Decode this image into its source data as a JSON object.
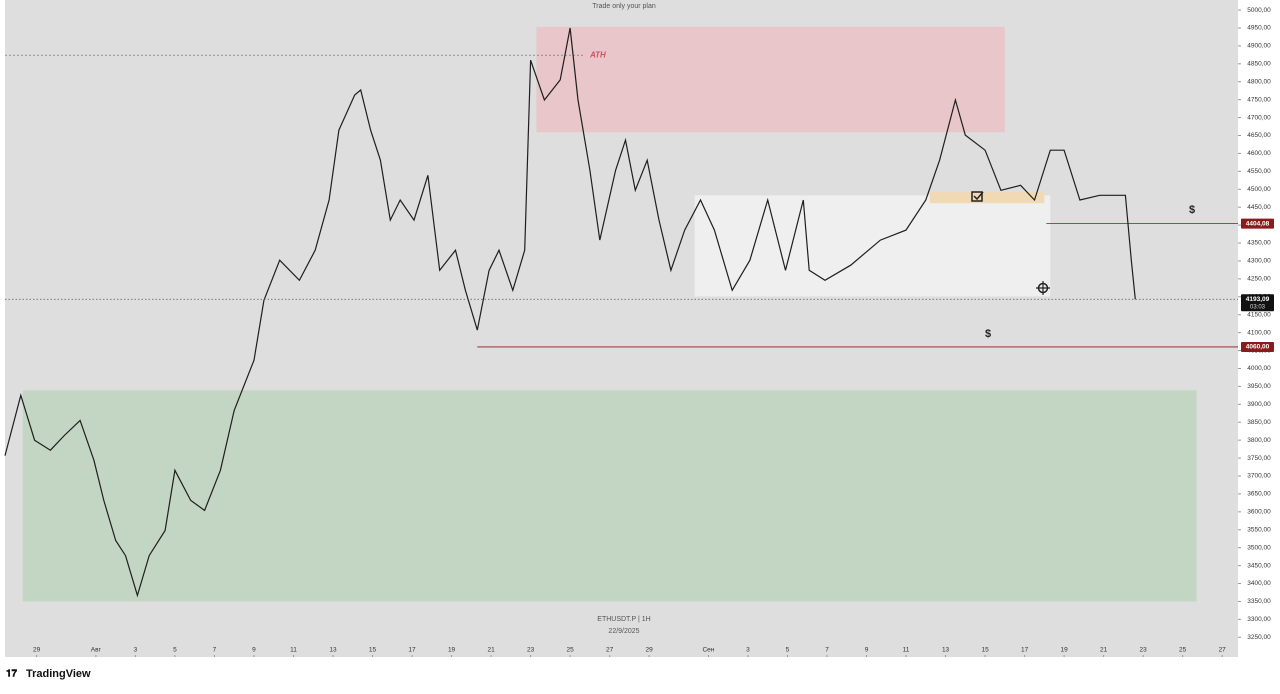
{
  "chart_data": {
    "type": "line",
    "title": "Trade only your plan",
    "symbol": "ETHUSDT.P | 1H",
    "date": "22/9/2025",
    "brand": "TradingView",
    "color": "#1e1e1e",
    "xlim": [
      -1.6,
      60.8
    ],
    "ylim": [
      3195,
      5028
    ],
    "xticks": [
      {
        "value": 0,
        "label": "29"
      },
      {
        "value": 3,
        "label": "Авг"
      },
      {
        "value": 5,
        "label": "3"
      },
      {
        "value": 7,
        "label": "5"
      },
      {
        "value": 9,
        "label": "7"
      },
      {
        "value": 11,
        "label": "9"
      },
      {
        "value": 13,
        "label": "11"
      },
      {
        "value": 15,
        "label": "13"
      },
      {
        "value": 17,
        "label": "15"
      },
      {
        "value": 19,
        "label": "17"
      },
      {
        "value": 21,
        "label": "19"
      },
      {
        "value": 23,
        "label": "21"
      },
      {
        "value": 25,
        "label": "23"
      },
      {
        "value": 27,
        "label": "25"
      },
      {
        "value": 29,
        "label": "27"
      },
      {
        "value": 31,
        "label": "29"
      },
      {
        "value": 34,
        "label": "Сен"
      },
      {
        "value": 36,
        "label": "3"
      },
      {
        "value": 38,
        "label": "5"
      },
      {
        "value": 40,
        "label": "7"
      },
      {
        "value": 42,
        "label": "9"
      },
      {
        "value": 44,
        "label": "11"
      },
      {
        "value": 46,
        "label": "13"
      },
      {
        "value": 48,
        "label": "15"
      },
      {
        "value": 50,
        "label": "17"
      },
      {
        "value": 52,
        "label": "19"
      },
      {
        "value": 54,
        "label": "21"
      },
      {
        "value": 56,
        "label": "23"
      },
      {
        "value": 58,
        "label": "25"
      },
      {
        "value": 60,
        "label": "27"
      }
    ],
    "yticks": [
      {
        "value": 3250,
        "label": "3250,00"
      },
      {
        "value": 3300,
        "label": "3300,00"
      },
      {
        "value": 3350,
        "label": "3350,00"
      },
      {
        "value": 3400,
        "label": "3400,00"
      },
      {
        "value": 3450,
        "label": "3450,00"
      },
      {
        "value": 3500,
        "label": "3500,00"
      },
      {
        "value": 3550,
        "label": "3550,00"
      },
      {
        "value": 3600,
        "label": "3600,00"
      },
      {
        "value": 3650,
        "label": "3650,00"
      },
      {
        "value": 3700,
        "label": "3700,00"
      },
      {
        "value": 3750,
        "label": "3750,00"
      },
      {
        "value": 3800,
        "label": "3800,00"
      },
      {
        "value": 3850,
        "label": "3850,00"
      },
      {
        "value": 3900,
        "label": "3900,00"
      },
      {
        "value": 3950,
        "label": "3950,00"
      },
      {
        "value": 4000,
        "label": "4000,00"
      },
      {
        "value": 4050,
        "label": "4050,00"
      },
      {
        "value": 4100,
        "label": "4100,00"
      },
      {
        "value": 4150,
        "label": "4150,00"
      },
      {
        "value": 4200,
        "label": "4200,00"
      },
      {
        "value": 4250,
        "label": "4250,00"
      },
      {
        "value": 4300,
        "label": "4300,00"
      },
      {
        "value": 4350,
        "label": "4350,00"
      },
      {
        "value": 4400,
        "label": "4400,00"
      },
      {
        "value": 4450,
        "label": "4450,00"
      },
      {
        "value": 4500,
        "label": "4500,00"
      },
      {
        "value": 4550,
        "label": "4550,00"
      },
      {
        "value": 4600,
        "label": "4600,00"
      },
      {
        "value": 4650,
        "label": "4650,00"
      },
      {
        "value": 4700,
        "label": "4700,00"
      },
      {
        "value": 4750,
        "label": "4750,00"
      },
      {
        "value": 4800,
        "label": "4800,00"
      },
      {
        "value": 4850,
        "label": "4850,00"
      },
      {
        "value": 4900,
        "label": "4900,00"
      },
      {
        "value": 4950,
        "label": "4950,00"
      },
      {
        "value": 5000,
        "label": "5000,00"
      }
    ],
    "x": [
      -1.6,
      -0.8,
      -0.1,
      0.7,
      1.4,
      2.2,
      2.9,
      3.4,
      4,
      4.5,
      5.1,
      5.7,
      6.5,
      7,
      7.8,
      8.5,
      9.3,
      10,
      11,
      11.5,
      12.3,
      13.3,
      14.1,
      14.8,
      15.3,
      16.1,
      16.4,
      16.9,
      17.4,
      17.9,
      18.4,
      19.1,
      19.8,
      20.4,
      21.2,
      21.7,
      22.3,
      22.9,
      23.4,
      24.1,
      24.7,
      25,
      25.7,
      26.5,
      27,
      27.4,
      28,
      28.5,
      29.3,
      29.8,
      30.3,
      30.9,
      31.5,
      32.1,
      32.8,
      33.6,
      34.3,
      35.2,
      36.1,
      37,
      37.9,
      38.8,
      39.1,
      39.9,
      41.2,
      42.7,
      44,
      45,
      45.7,
      46.5,
      47,
      48,
      48.8,
      49.8,
      50.5,
      51.3,
      52,
      52.8,
      53.8,
      55.1,
      55.4,
      55.6
    ],
    "values": [
      3757,
      3925,
      3800,
      3772,
      3813,
      3855,
      3744,
      3632,
      3520,
      3478,
      3367,
      3478,
      3548,
      3716,
      3632,
      3604,
      3716,
      3883,
      4023,
      4190,
      4302,
      4246,
      4330,
      4470,
      4665,
      4763,
      4777,
      4665,
      4581,
      4414,
      4470,
      4414,
      4539,
      4274,
      4330,
      4218,
      4107,
      4274,
      4330,
      4218,
      4330,
      4860,
      4749,
      4805,
      4950,
      4749,
      4553,
      4358,
      4553,
      4637,
      4497,
      4581,
      4414,
      4274,
      4386,
      4470,
      4386,
      4218,
      4302,
      4470,
      4274,
      4470,
      4274,
      4246,
      4288,
      4358,
      4386,
      4470,
      4581,
      4749,
      4651,
      4609,
      4497,
      4511,
      4470,
      4609,
      4609,
      4470,
      4483,
      4483,
      4302,
      4193.09
    ],
    "zones": [
      {
        "x": [
          25.3,
          49
        ],
        "y": [
          4659,
          4953
        ],
        "color": "#e8c6ca"
      },
      {
        "x": [
          -0.7,
          58.7
        ],
        "y": [
          3350,
          3939
        ],
        "color": "#c2d6c3"
      },
      {
        "x": [
          33.3,
          51.3
        ],
        "y": [
          4201,
          4483
        ],
        "color": "#efefef"
      },
      {
        "x": [
          45.2,
          51
        ],
        "y": [
          4461,
          4492
        ],
        "color": "#f1d9b4"
      }
    ],
    "ath": {
      "value": 4874,
      "to": 27.7,
      "label": "ATH"
    },
    "levels": [
      {
        "value": 4404.08,
        "label": "4404,08",
        "from": 51.1
      },
      {
        "value": 4060,
        "label": "4060,00",
        "from": 22.3
      }
    ],
    "last": {
      "value": 4193.09,
      "label": "4193,09",
      "timer": "03:03"
    },
    "annotations": [
      "$",
      "$"
    ]
  }
}
